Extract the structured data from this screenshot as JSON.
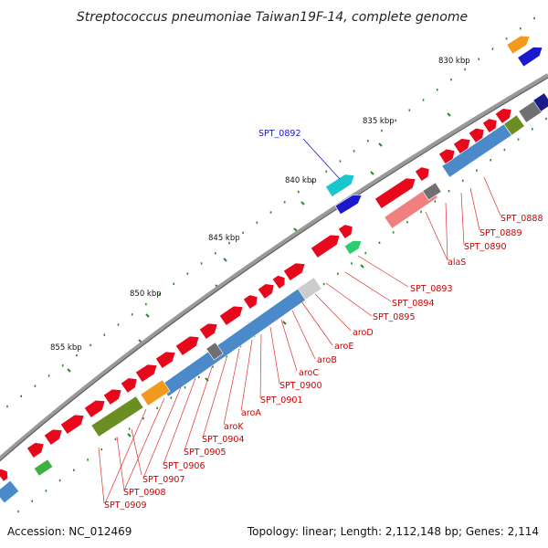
{
  "title": "Streptococcus pneumoniae Taiwan19F-14, complete genome",
  "footer": {
    "accession": "Accession: NC_012469",
    "summary": "Topology: linear; Length: 2,112,148 bp; Genes: 2,114"
  },
  "colors": {
    "forward_cds": "#e8081c",
    "reverse_cds": "#4a8ac8",
    "backbone": "#7d7d7d",
    "label_lines": "#e03030",
    "highlight_label": "#1818cc",
    "ticks": "#2a8a2a"
  },
  "kbp_ticks": [
    "830 kbp",
    "835 kbp",
    "840 kbp",
    "845 kbp",
    "850 kbp",
    "855 kbp"
  ],
  "gene_labels": [
    {
      "text": "SPT_0888",
      "color": "#cc0000"
    },
    {
      "text": "SPT_0889",
      "color": "#cc0000"
    },
    {
      "text": "SPT_0890",
      "color": "#cc0000"
    },
    {
      "text": "alaS",
      "color": "#cc0000"
    },
    {
      "text": "SPT_0893",
      "color": "#cc0000"
    },
    {
      "text": "SPT_0894",
      "color": "#cc0000"
    },
    {
      "text": "SPT_0895",
      "color": "#cc0000"
    },
    {
      "text": "aroD",
      "color": "#cc0000"
    },
    {
      "text": "aroE",
      "color": "#cc0000"
    },
    {
      "text": "aroB",
      "color": "#cc0000"
    },
    {
      "text": "aroC",
      "color": "#cc0000"
    },
    {
      "text": "SPT_0900",
      "color": "#cc0000"
    },
    {
      "text": "SPT_0901",
      "color": "#cc0000"
    },
    {
      "text": "aroA",
      "color": "#cc0000"
    },
    {
      "text": "aroK",
      "color": "#cc0000"
    },
    {
      "text": "SPT_0904",
      "color": "#cc0000"
    },
    {
      "text": "SPT_0905",
      "color": "#cc0000"
    },
    {
      "text": "SPT_0906",
      "color": "#cc0000"
    },
    {
      "text": "SPT_0907",
      "color": "#cc0000"
    },
    {
      "text": "SPT_0908",
      "color": "#cc0000"
    },
    {
      "text": "SPT_0909",
      "color": "#cc0000"
    },
    {
      "text": "SPT_0892",
      "color": "#1818cc"
    }
  ]
}
